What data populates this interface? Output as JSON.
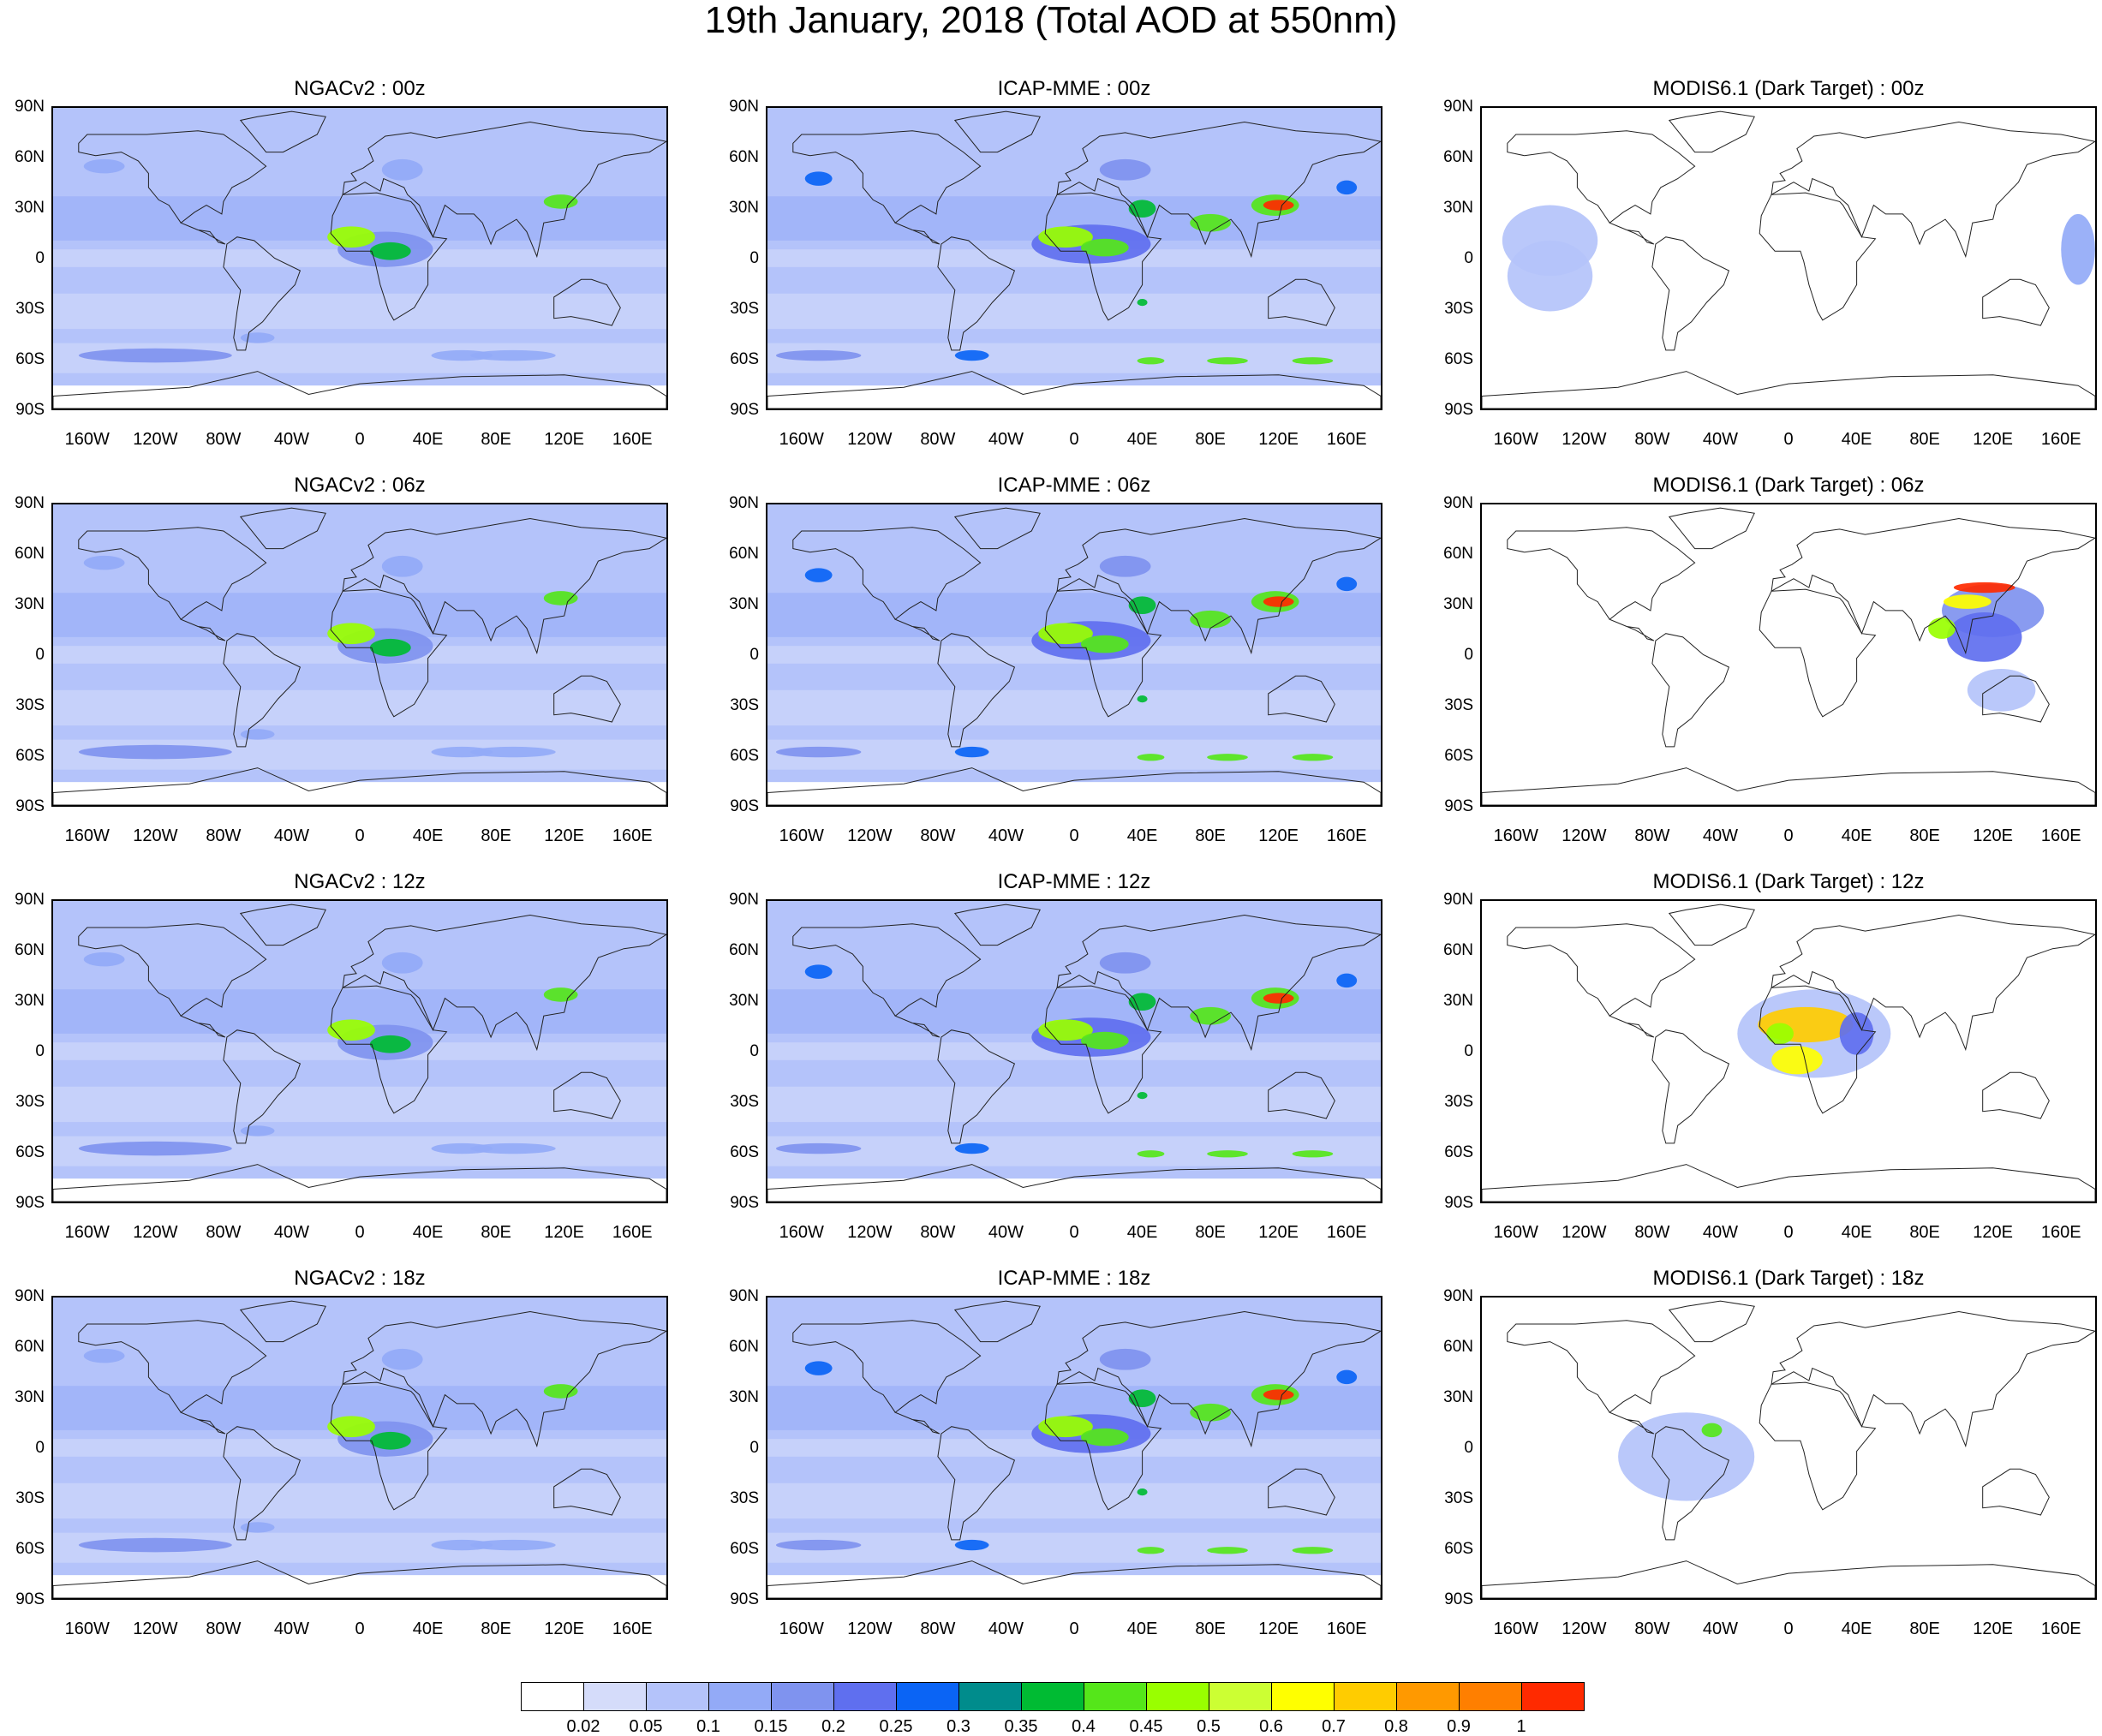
{
  "title": "19th January, 2018 (Total AOD at 550nm)",
  "lat_labels": [
    "90N",
    "60N",
    "30N",
    "0",
    "30S",
    "60S",
    "90S"
  ],
  "lon_labels": [
    "160W",
    "120W",
    "80W",
    "40W",
    "0",
    "40E",
    "80E",
    "120E",
    "160E"
  ],
  "panels": [
    {
      "title": "NGACv2 : 00z",
      "model": "ngac"
    },
    {
      "title": "ICAP-MME : 00z",
      "model": "icap"
    },
    {
      "title": "MODIS6.1 (Dark Target) : 00z",
      "model": "modis00"
    },
    {
      "title": "NGACv2 : 06z",
      "model": "ngac"
    },
    {
      "title": "ICAP-MME : 06z",
      "model": "icap"
    },
    {
      "title": "MODIS6.1 (Dark Target) : 06z",
      "model": "modis06"
    },
    {
      "title": "NGACv2 : 12z",
      "model": "ngac"
    },
    {
      "title": "ICAP-MME : 12z",
      "model": "icap"
    },
    {
      "title": "MODIS6.1 (Dark Target) : 12z",
      "model": "modis12"
    },
    {
      "title": "NGACv2 : 18z",
      "model": "ngac"
    },
    {
      "title": "ICAP-MME : 18z",
      "model": "icap"
    },
    {
      "title": "MODIS6.1 (Dark Target) : 18z",
      "model": "modis18"
    }
  ],
  "colorbar": {
    "labels": [
      "0.02",
      "0.05",
      "0.1",
      "0.15",
      "0.2",
      "0.25",
      "0.3",
      "0.35",
      "0.4",
      "0.45",
      "0.5",
      "0.6",
      "0.7",
      "0.8",
      "0.9",
      "1"
    ],
    "colors": [
      "#ffffff",
      "#d5dcfa",
      "#b4c3fa",
      "#93aaf7",
      "#7f93ef",
      "#5f6fef",
      "#0a64f5",
      "#008c8c",
      "#00bb33",
      "#55e61a",
      "#99ff00",
      "#ccff33",
      "#ffff00",
      "#ffcc00",
      "#ff9900",
      "#ff7f00",
      "#ff2a00"
    ]
  }
}
